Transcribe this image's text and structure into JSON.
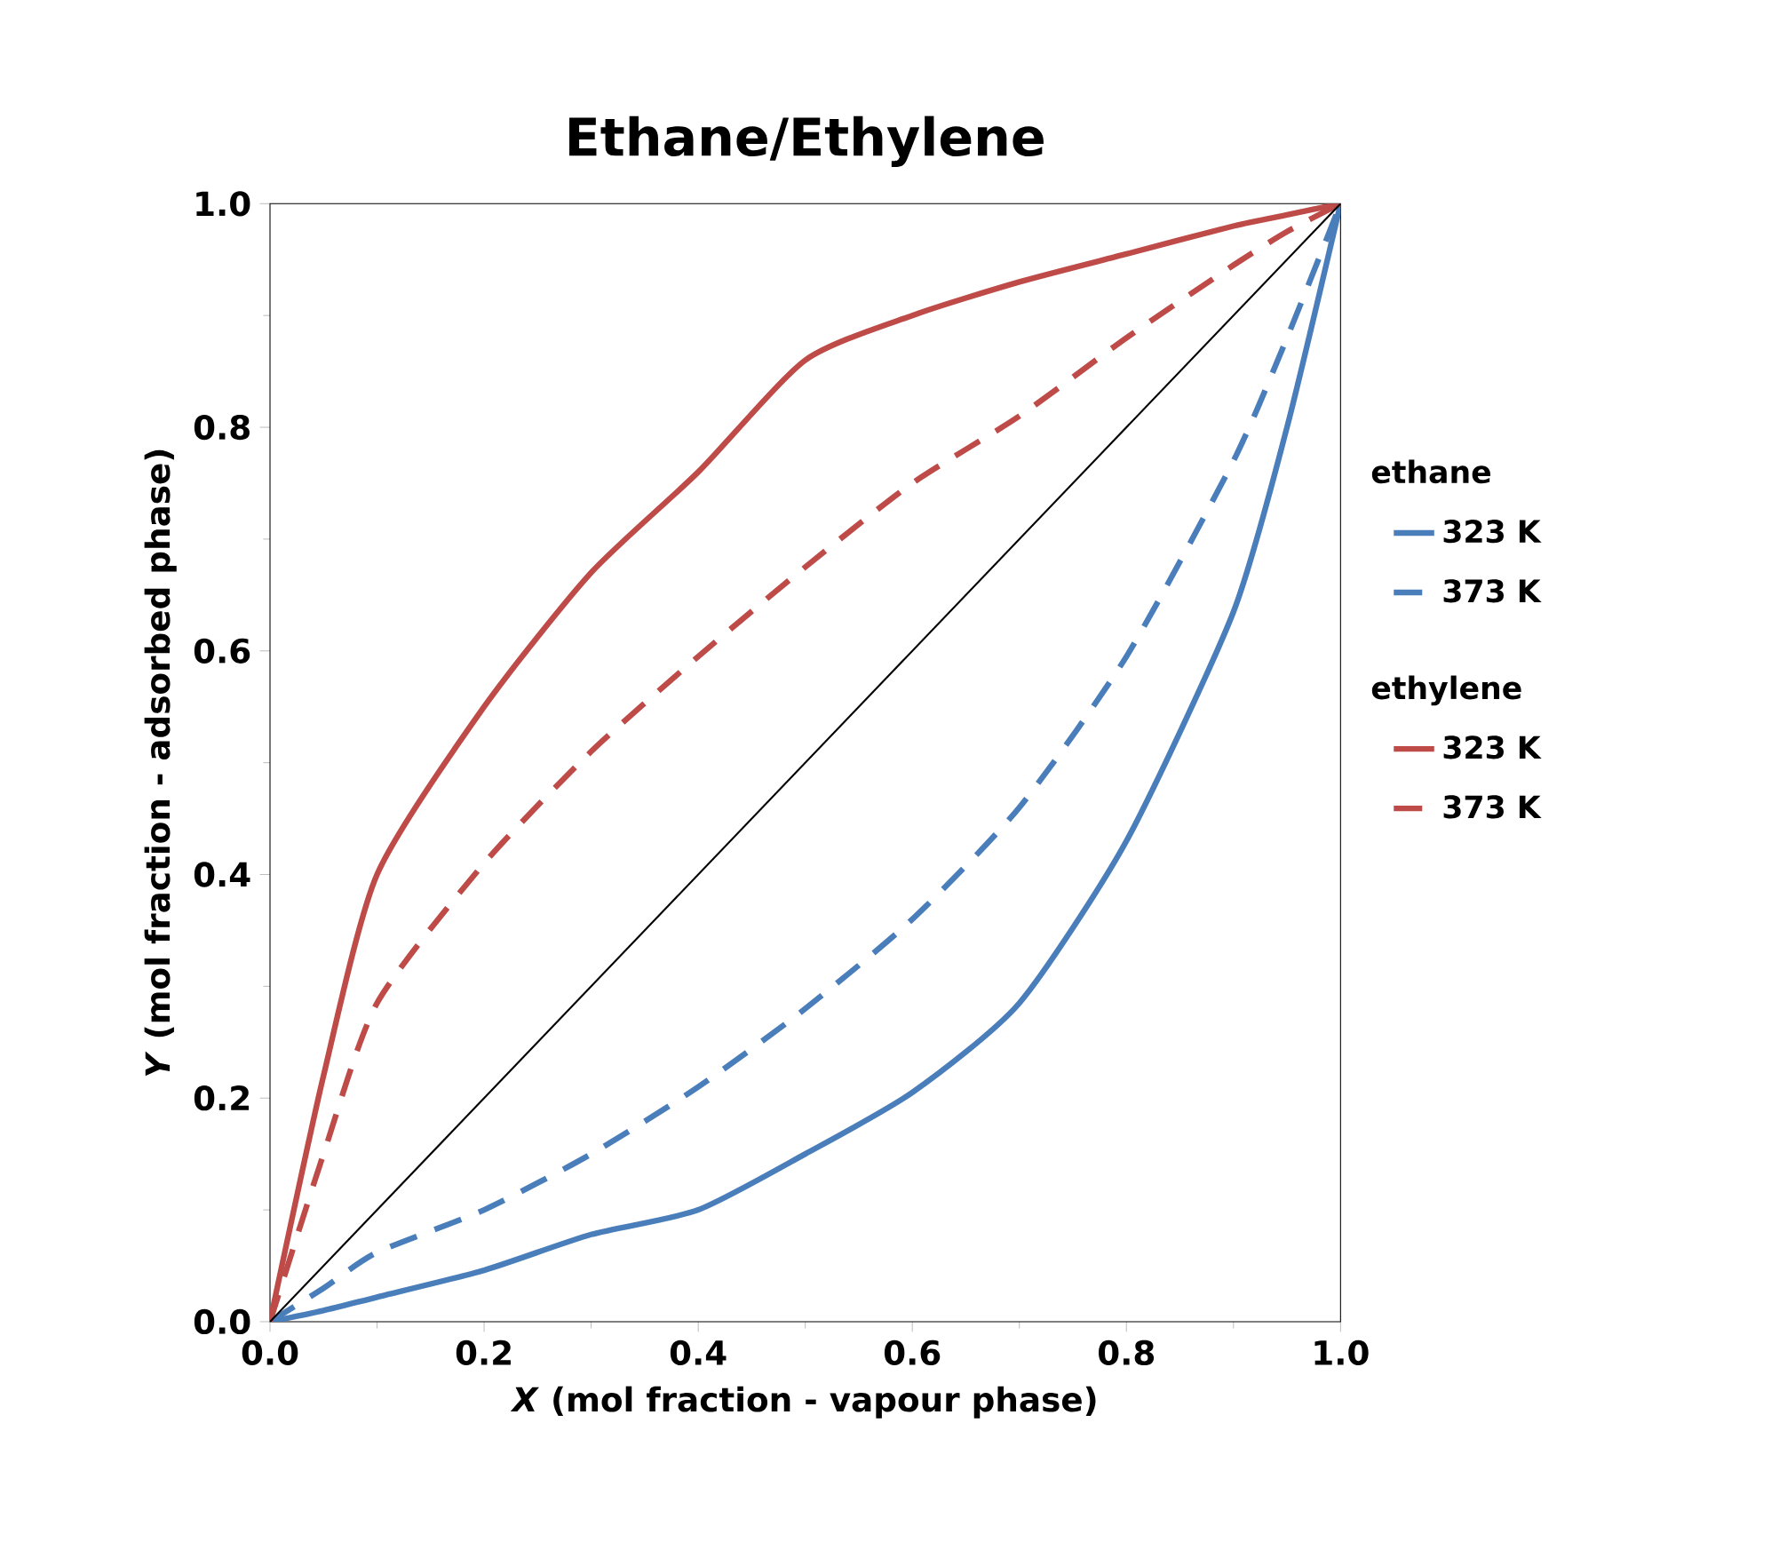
{
  "chart_data": {
    "type": "line",
    "title": "Ethane/Ethylene",
    "xlabel": "*X* (mol fraction - vapour phase)",
    "ylabel": "*Y* (mol fraction - adsorbed phase)",
    "x": [
      0,
      0.05,
      0.1,
      0.2,
      0.3,
      0.4,
      0.5,
      0.6,
      0.7,
      0.8,
      0.9,
      0.95,
      1
    ],
    "series": [
      {
        "name": "323 K",
        "color": "#4a7ebb",
        "line_style": "solid",
        "values": [
          0,
          0.01,
          0.022,
          0.046,
          0.078,
          0.1,
          0.15,
          0.205,
          0.285,
          0.43,
          0.635,
          0.8,
          1
        ]
      },
      {
        "name": "373 K",
        "color": "#4a7ebb",
        "line_style": "dashed",
        "values": [
          0,
          0.03,
          0.062,
          0.1,
          0.15,
          0.21,
          0.28,
          0.36,
          0.46,
          0.595,
          0.77,
          0.88,
          1
        ]
      },
      {
        "name": "323 K",
        "color": "#be4b48",
        "line_style": "solid",
        "values": [
          0,
          0.22,
          0.4,
          0.55,
          0.67,
          0.76,
          0.86,
          0.9,
          0.93,
          0.955,
          0.98,
          0.99,
          1
        ]
      },
      {
        "name": "373 K",
        "color": "#be4b48",
        "line_style": "dashed",
        "values": [
          0,
          0.15,
          0.285,
          0.41,
          0.51,
          0.595,
          0.675,
          0.75,
          0.81,
          0.88,
          0.945,
          0.975,
          1
        ]
      },
      {
        "color": "#000000",
        "line_style": "solid",
        "x": [
          0,
          1
        ],
        "values": [
          0,
          1
        ]
      }
    ],
    "annotations": [
      "ethane",
      "ethylene"
    ],
    "xlim": [
      0,
      1
    ],
    "ylim": [
      0,
      1
    ],
    "xticks": [
      {
        "value": 0,
        "label": "0.0"
      },
      0.2,
      0.4,
      0.6,
      0.8,
      {
        "value": 1,
        "label": "1.0"
      }
    ],
    "yticks": [
      {
        "value": 0,
        "label": "0.0"
      },
      0.2,
      0.4,
      0.6,
      0.8,
      {
        "value": 1,
        "label": "1.0"
      }
    ],
    "grid": false,
    "legend": "right",
    "marker": "none"
  }
}
